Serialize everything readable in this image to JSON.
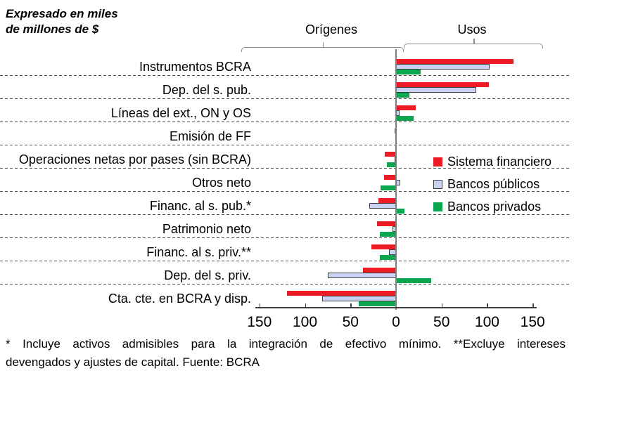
{
  "title": {
    "line1": "Expresado en miles",
    "line2": "de millones de $"
  },
  "axis_groups": {
    "origenes": "Orígenes",
    "usos": "Usos"
  },
  "legend": {
    "items": [
      {
        "label": "Sistema financiero",
        "color": "#ec1b26",
        "border": null
      },
      {
        "label": "Bancos públicos",
        "color": "#c8d2f2",
        "border": "#404040"
      },
      {
        "label": "Bancos privados",
        "color": "#0aa650",
        "border": null
      }
    ]
  },
  "footnote": {
    "line1": "* Incluye activos admisibles para la integración de efectivo mínimo. **Excluye intereses",
    "line2": "devengados y ajustes de capital. Fuente: BCRA"
  },
  "colors": {
    "sistema_financiero": "#ec1b26",
    "bancos_publicos_fill": "#c8d2f2",
    "bancos_publicos_border": "#404040",
    "bancos_privados": "#0aa650",
    "axis_line": "#404040",
    "zero_line": "#808080",
    "bracket": "#8c8c8c",
    "gridline": "#4d4d4d"
  },
  "chart_data": {
    "type": "bar",
    "orientation": "horizontal-diverging",
    "unit": "miles de millones de $",
    "title": "Expresado en miles de millones de $",
    "negative_side_label": "Orígenes",
    "positive_side_label": "Usos",
    "categories": [
      "Instrumentos BCRA",
      "Dep. del s. pub.",
      "Líneas del ext., ON y OS",
      "Emisión de FF",
      "Operaciones netas por pases (sin BCRA)",
      "Otros neto",
      "Financ. al s. pub.*",
      "Patrimonio neto",
      "Financ. al s. priv.**",
      "Dep. del s. priv.",
      "Cta. cte. en BCRA y disp."
    ],
    "series": [
      {
        "name": "Sistema financiero",
        "color": "#ec1b26",
        "values": [
          129,
          102,
          22,
          -1.5,
          -12,
          -13,
          -19,
          -21,
          -27,
          -36,
          -120
        ]
      },
      {
        "name": "Bancos públicos",
        "color": "#c8d2f2",
        "border_color": "#404040",
        "values": [
          103,
          88,
          4,
          0,
          -1,
          5,
          -29,
          -3.5,
          -7.5,
          -75,
          -81
        ]
      },
      {
        "name": "Bancos privados",
        "color": "#0aa650",
        "values": [
          27,
          15,
          19,
          0,
          -10,
          -17,
          9,
          -18,
          -18,
          39,
          -41
        ]
      }
    ],
    "xlim": [
      -150,
      150
    ],
    "xticks": [
      -150,
      -100,
      -50,
      0,
      50,
      100,
      150
    ],
    "xtick_labels": [
      "150",
      "100",
      "50",
      "0",
      "50",
      "100",
      "150"
    ],
    "grid": "horizontal-dashed",
    "legend_position": "middle-right"
  }
}
